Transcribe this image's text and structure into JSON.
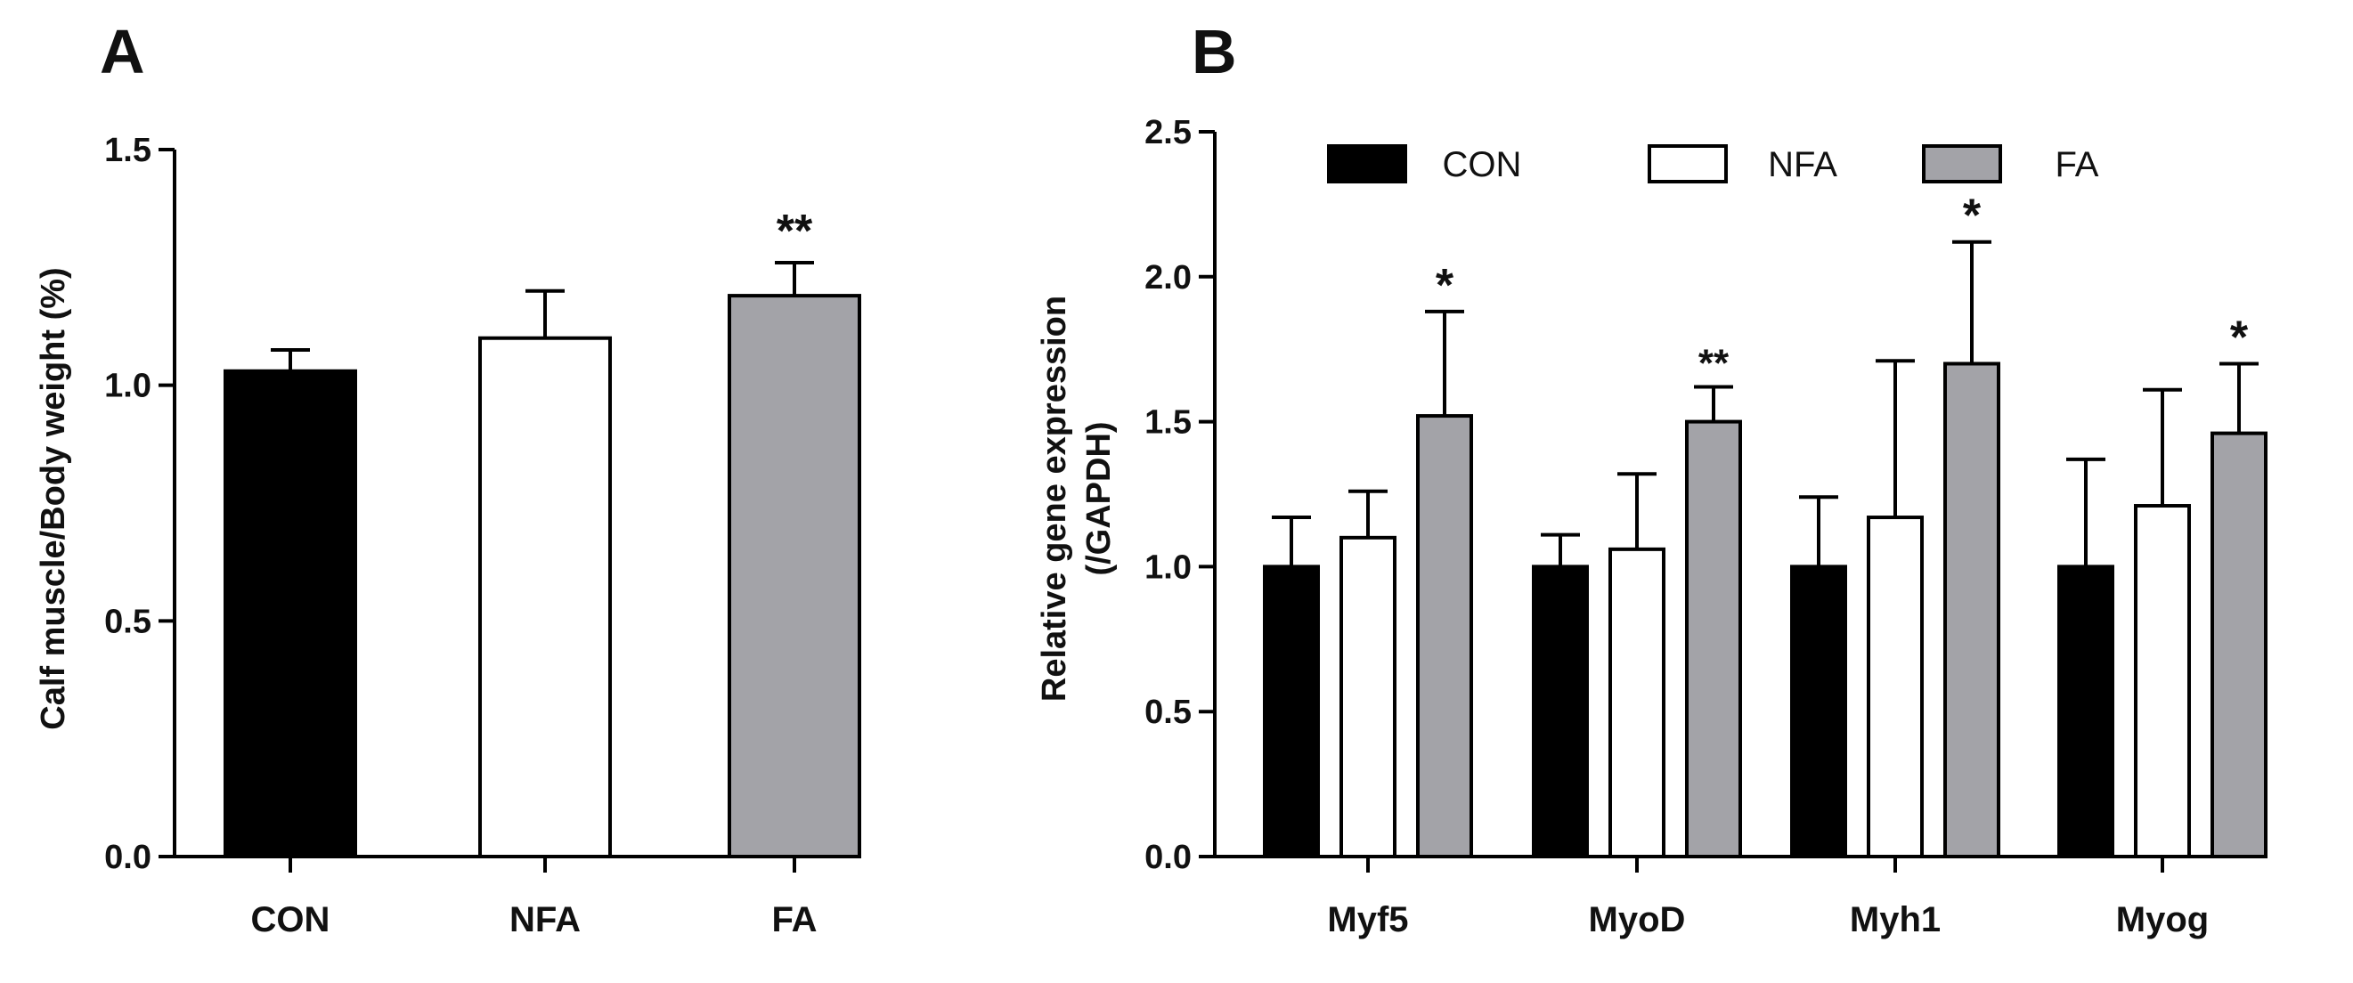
{
  "chart_data": [
    {
      "type": "bar",
      "panel_label": "A",
      "title": "",
      "xlabel": "",
      "ylabel": "Calf muscle/Body weight  (%)",
      "ylim": [
        0,
        1.5
      ],
      "yticks": [
        "0.0",
        "0.5",
        "1.0",
        "1.5"
      ],
      "categories": [
        "CON",
        "NFA",
        "FA"
      ],
      "values": [
        1.03,
        1.1,
        1.19
      ],
      "errors": [
        0.045,
        0.1,
        0.07
      ],
      "significance": [
        "",
        "",
        "**"
      ],
      "colors": [
        "#000000",
        "#ffffff",
        "#a3a3a8"
      ]
    },
    {
      "type": "bar",
      "panel_label": "B",
      "title": "",
      "xlabel": "",
      "ylabel_line1": "Relative gene expression",
      "ylabel_line2": "(/GAPDH)",
      "ylim": [
        0,
        2.5
      ],
      "yticks": [
        "0.0",
        "0.5",
        "1.0",
        "1.5",
        "2.0",
        "2.5"
      ],
      "categories": [
        "Myf5",
        "MyoD",
        "Myh1",
        "Myog"
      ],
      "legend_position": "top",
      "series": [
        {
          "name": "CON",
          "color": "#000000",
          "values": [
            1.0,
            1.0,
            1.0,
            1.0
          ],
          "errors": [
            0.17,
            0.11,
            0.24,
            0.37
          ],
          "significance": [
            "",
            "",
            "",
            ""
          ]
        },
        {
          "name": "NFA",
          "color": "#ffffff",
          "values": [
            1.1,
            1.06,
            1.17,
            1.21
          ],
          "errors": [
            0.16,
            0.26,
            0.54,
            0.4
          ],
          "significance": [
            "",
            "",
            "",
            ""
          ]
        },
        {
          "name": "FA",
          "color": "#a3a3a8",
          "values": [
            1.52,
            1.5,
            1.7,
            1.46
          ],
          "errors": [
            0.36,
            0.12,
            0.42,
            0.24
          ],
          "significance": [
            "*",
            "**",
            "*",
            "*"
          ]
        }
      ]
    }
  ]
}
